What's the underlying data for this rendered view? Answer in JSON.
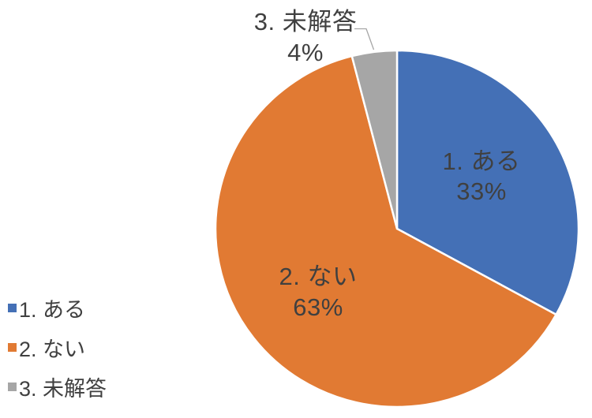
{
  "chart_data": {
    "type": "pie",
    "title": "",
    "categories": [
      "1. ある",
      "2. ない",
      "3. 未解答"
    ],
    "values": [
      33,
      63,
      4
    ],
    "unit": "%",
    "colors": [
      "#4470B6",
      "#E17A33",
      "#A6A6A6"
    ],
    "slice_labels": [
      {
        "line1": "1. ある",
        "line2": "33%"
      },
      {
        "line1": "2. ない",
        "line2": "63%"
      },
      {
        "line1": "3. 未解答",
        "line2": "4%"
      }
    ],
    "legend": {
      "position": "bottom-left",
      "items": [
        "1. ある",
        "2. ない",
        "3. 未解答"
      ]
    },
    "start_angle_deg": 0,
    "direction": "clockwise",
    "background_color": "#FFFFFF",
    "text_color": "#404040",
    "leader_line_color": "#A6A6A6",
    "slice_border_color": "#FFFFFF"
  }
}
